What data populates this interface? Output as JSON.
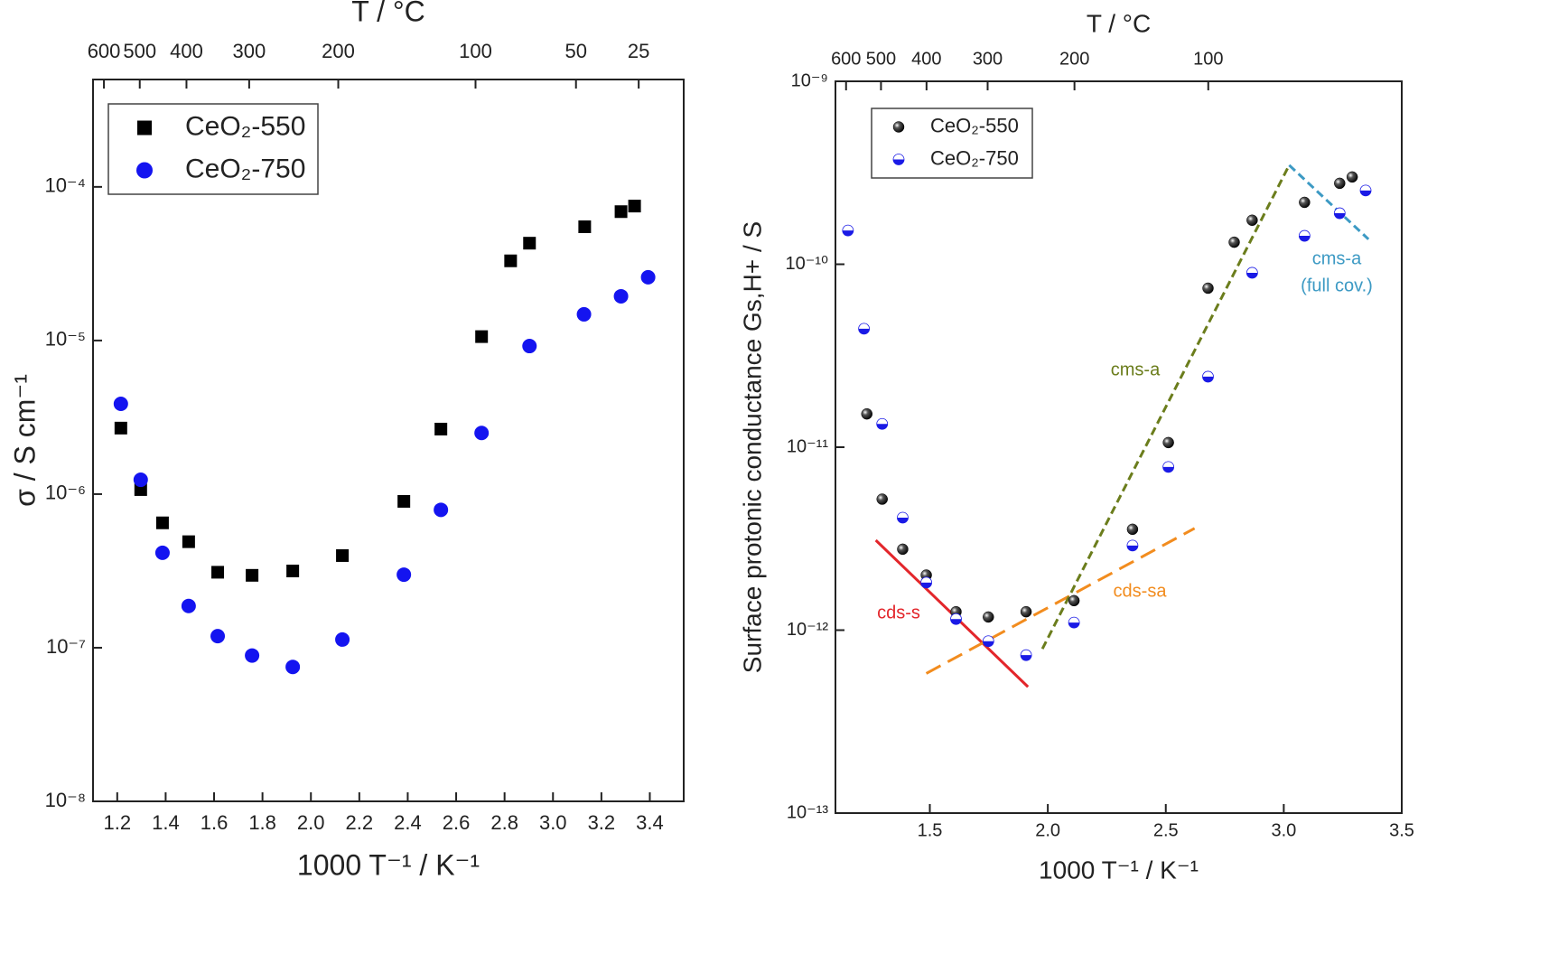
{
  "chart_data": [
    {
      "type": "scatter",
      "xlabel": "1000 T⁻¹ / K⁻¹",
      "ylabel": "σ / S cm⁻¹",
      "x2label": "T / °C",
      "xlim": [
        1.1,
        3.54
      ],
      "xticks": [
        1.2,
        1.4,
        1.6,
        1.8,
        {
          "value": 2.0,
          "label": "2.0"
        },
        2.2,
        2.4,
        2.6,
        2.8,
        {
          "value": 3.0,
          "label": "3.0"
        },
        3.2,
        3.4
      ],
      "x2ticks": [
        {
          "value": 1.145,
          "label": "600"
        },
        {
          "value": 1.293,
          "label": "500"
        },
        {
          "value": 1.486,
          "label": "400"
        },
        {
          "value": 1.745,
          "label": "300"
        },
        {
          "value": 2.113,
          "label": "200"
        },
        {
          "value": 2.68,
          "label": "100"
        },
        {
          "value": 3.095,
          "label": "50"
        },
        {
          "value": 3.354,
          "label": "25"
        }
      ],
      "yscale": "log",
      "ylim": [
        1e-08,
        0.0005
      ],
      "yticks": [
        {
          "value": 1e-08,
          "label": "10⁻⁸"
        },
        {
          "value": 1e-07,
          "label": "10⁻⁷"
        },
        {
          "value": 1e-06,
          "label": "10⁻⁶"
        },
        {
          "value": 1e-05,
          "label": "10⁻⁵"
        },
        {
          "value": 0.0001,
          "label": "10⁻⁴"
        }
      ],
      "legend": "upper left",
      "series": [
        {
          "name": "CeO₂-550",
          "color": "#000000",
          "marker": "square",
          "x": [
            1.215,
            1.297,
            1.387,
            1.495,
            1.615,
            1.757,
            1.925,
            2.13,
            2.384,
            2.537,
            2.705,
            2.825,
            2.903,
            3.131,
            3.281,
            3.337
          ],
          "values": [
            2.69e-06,
            1.07e-06,
            6.5e-07,
            4.9e-07,
            3.1e-07,
            2.96e-07,
            3.16e-07,
            3.98e-07,
            8.97e-07,
            2.65e-06,
            1.06e-05,
            3.3e-05,
            4.3e-05,
            5.5e-05,
            6.9e-05,
            7.5e-05
          ]
        },
        {
          "name": "CeO₂-750",
          "color": "#1414f0",
          "marker": "circle",
          "x": [
            1.215,
            1.297,
            1.387,
            1.495,
            1.615,
            1.757,
            1.925,
            2.13,
            2.384,
            2.537,
            2.705,
            2.903,
            3.128,
            3.281,
            3.393
          ],
          "values": [
            3.87e-06,
            1.24e-06,
            4.15e-07,
            1.87e-07,
            1.19e-07,
            8.9e-08,
            7.5e-08,
            1.13e-07,
            2.99e-07,
            7.9e-07,
            2.5e-06,
            9.2e-06,
            1.48e-05,
            1.94e-05,
            2.58e-05
          ]
        }
      ]
    },
    {
      "type": "scatter",
      "xlabel": "1000 T⁻¹ / K⁻¹",
      "ylabel": "Surface protonic conductance Gs,H+ / S",
      "x2label": "T / °C",
      "xlim": [
        1.1,
        3.5
      ],
      "xticks": [
        1.5,
        {
          "value": 2.0,
          "label": "2.0"
        },
        2.5,
        {
          "value": 3.0,
          "label": "3.0"
        },
        3.5
      ],
      "x2ticks": [
        {
          "value": 1.145,
          "label": "600"
        },
        {
          "value": 1.293,
          "label": "500"
        },
        {
          "value": 1.486,
          "label": "400"
        },
        {
          "value": 1.745,
          "label": "300"
        },
        {
          "value": 2.113,
          "label": "200"
        },
        {
          "value": 2.68,
          "label": "100"
        }
      ],
      "yscale": "log",
      "ylim": [
        1e-13,
        1e-09
      ],
      "yticks": [
        {
          "value": 1e-13,
          "label": "10⁻¹³"
        },
        {
          "value": 1e-12,
          "label": "10⁻¹²"
        },
        {
          "value": 1e-11,
          "label": "10⁻¹¹"
        },
        {
          "value": 1e-10,
          "label": "10⁻¹⁰"
        },
        {
          "value": 1e-09,
          "label": "10⁻⁹"
        }
      ],
      "legend": "upper left",
      "series": [
        {
          "name": "CeO₂-550",
          "color": "#000000",
          "marker": "sphere",
          "x": [
            1.233,
            1.298,
            1.385,
            1.485,
            1.611,
            1.748,
            1.908,
            2.111,
            2.359,
            2.511,
            2.679,
            2.79,
            2.866,
            3.088,
            3.237,
            3.29
          ],
          "values": [
            1.52e-11,
            5.2e-12,
            2.77e-12,
            2e-12,
            1.26e-12,
            1.18e-12,
            1.26e-12,
            1.45e-12,
            3.56e-12,
            1.06e-11,
            7.4e-11,
            1.32e-10,
            1.74e-10,
            2.18e-10,
            2.77e-10,
            3e-10
          ]
        },
        {
          "name": "CeO₂-750",
          "color": "#1a1ae6",
          "marker": "half-circle",
          "x": [
            1.153,
            1.221,
            1.298,
            1.385,
            1.485,
            1.611,
            1.748,
            1.908,
            2.111,
            2.359,
            2.511,
            2.679,
            2.866,
            3.088,
            3.237,
            3.347
          ],
          "values": [
            1.53e-10,
            4.44e-11,
            1.34e-11,
            4.12e-12,
            1.82e-12,
            1.15e-12,
            8.7e-13,
            7.3e-13,
            1.1e-12,
            2.9e-12,
            7.8e-12,
            2.43e-11,
            8.98e-11,
            1.43e-10,
            1.9e-10,
            2.53e-10
          ]
        }
      ],
      "fits": [
        {
          "label": [
            "cds-s"
          ],
          "color": "#e3262b",
          "dash": "solid",
          "x": [
            1.271,
            1.916
          ],
          "values": [
            3.1e-12,
            4.9e-13
          ]
        },
        {
          "label": [
            "cds-sa"
          ],
          "color": "#f28c1e",
          "dash": "long-dash",
          "x": [
            1.485,
            2.622
          ],
          "values": [
            5.8e-13,
            3.6e-12
          ]
        },
        {
          "label": [
            "cms-a"
          ],
          "color": "#6b7d1c",
          "dash": "dashed",
          "x": [
            1.977,
            3.023
          ],
          "values": [
            7.9e-13,
            3.48e-10
          ]
        },
        {
          "label": [
            "cms-a",
            "(full cov.)"
          ],
          "color": "#3d9ac4",
          "dash": "dashed",
          "x": [
            3.023,
            3.359
          ],
          "values": [
            3.48e-10,
            1.37e-10
          ]
        }
      ]
    }
  ]
}
